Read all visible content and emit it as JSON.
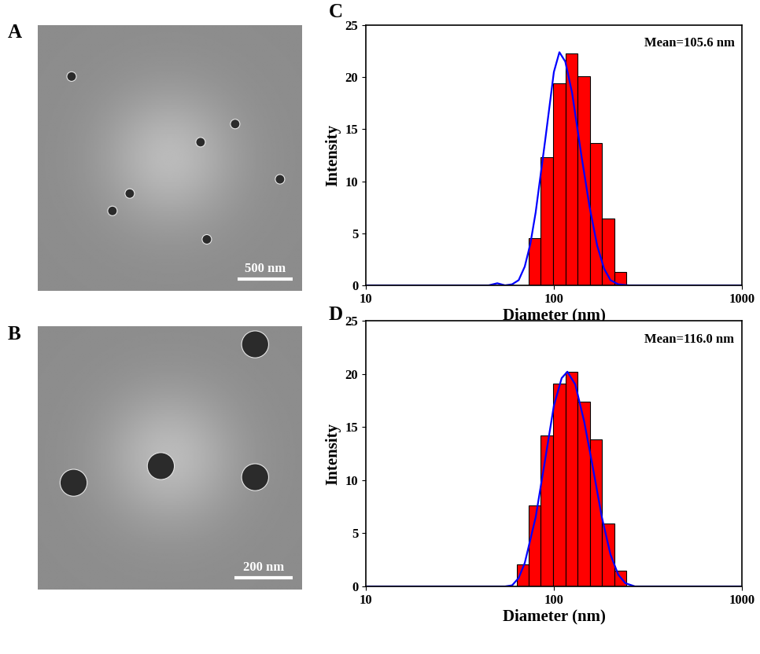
{
  "chart_data": [
    {
      "type": "image",
      "panel": "A",
      "xlim": [
        0,
        2400
      ],
      "ylim": [
        0,
        2400
      ],
      "tick_labels": false,
      "particles": {
        "x": [
          307,
          1792,
          1478,
          2199,
          835,
          678,
          1535
        ],
        "y": [
          1936,
          1507,
          1343,
          1008,
          879,
          722,
          465
        ],
        "diameter": [
          86,
          86,
          86,
          86,
          86,
          86,
          86
        ]
      },
      "scale_bar": {
        "length": 500,
        "label": "500 nm"
      }
    },
    {
      "type": "image",
      "panel": "B",
      "xlim": [
        0,
        900
      ],
      "ylim": [
        0,
        900
      ],
      "tick_labels": false,
      "particles": {
        "x": [
          122,
          419,
          740,
          740
        ],
        "y": [
          365,
          422,
          384,
          838
        ],
        "diameter": [
          92,
          92,
          92,
          92
        ]
      },
      "scale_bar": {
        "length": 200,
        "label": "200 nm"
      }
    },
    {
      "type": "histogram",
      "panel": "C",
      "annotation": "Mean=105.6 nm",
      "x_label": "Diameter (nm)",
      "y_label": "Intensity",
      "log": "x",
      "bins": [
        73.5,
        85.3,
        99.1,
        115.1,
        133.7,
        155.3,
        180.3,
        209.4,
        243.2
      ],
      "counts": [
        4.5,
        12.3,
        19.4,
        22.3,
        20.1,
        13.7,
        6.4,
        1.3
      ],
      "color": "#ff0000",
      "fit": {
        "x": [
          10,
          45,
          50,
          55,
          60,
          65,
          70,
          75,
          80,
          90,
          100,
          107,
          115,
          125,
          140,
          155,
          170,
          185,
          200,
          220,
          250,
          1000
        ],
        "y": [
          0,
          0,
          0.2,
          0,
          0.1,
          0.5,
          1.8,
          4,
          7,
          14,
          20.5,
          22.4,
          21.5,
          18.5,
          12.5,
          7.5,
          3.8,
          1.6,
          0.5,
          0.1,
          0,
          0
        ],
        "color": "#0000ff"
      },
      "xlim": [
        10,
        1000
      ],
      "xticks": [
        10,
        100,
        1000
      ],
      "ylim": [
        0,
        25
      ],
      "yticks": [
        0,
        5,
        10,
        15,
        20,
        25
      ]
    },
    {
      "type": "histogram",
      "panel": "D",
      "annotation": "Mean=116.0 nm",
      "x_label": "Diameter (nm)",
      "y_label": "Intensity",
      "log": "x",
      "bins": [
        63.3,
        73.5,
        85.3,
        99.1,
        115.1,
        133.7,
        155.3,
        180.3,
        209.4,
        243.2
      ],
      "counts": [
        2.1,
        7.6,
        14.2,
        19.1,
        20.2,
        17.4,
        13.8,
        5.9,
        1.5
      ],
      "color": "#ff0000",
      "fit": {
        "x": [
          10,
          55,
          60,
          65,
          70,
          80,
          90,
          100,
          110,
          118,
          130,
          145,
          160,
          180,
          200,
          220,
          240,
          270,
          1000
        ],
        "y": [
          0,
          0,
          0.1,
          0.8,
          2.2,
          6.5,
          12,
          17,
          19.6,
          20.2,
          19,
          15.5,
          11.5,
          6.5,
          3,
          1.1,
          0.3,
          0,
          0
        ],
        "color": "#0000ff"
      },
      "xlim": [
        10,
        1000
      ],
      "xticks": [
        10,
        100,
        1000
      ],
      "ylim": [
        0,
        25
      ],
      "yticks": [
        0,
        5,
        10,
        15,
        20,
        25
      ]
    }
  ]
}
